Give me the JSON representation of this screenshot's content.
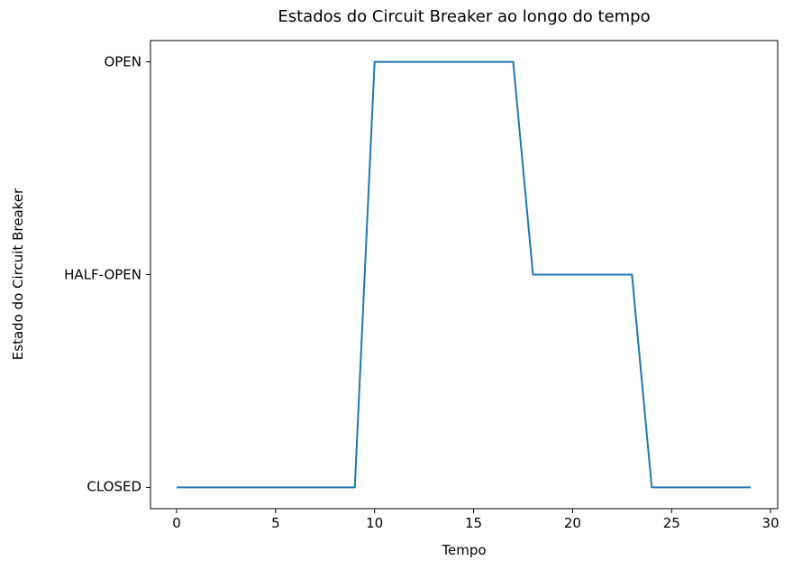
{
  "figure": {
    "background": "#ffffff",
    "axis_color": "#000000",
    "text_color": "#000000"
  },
  "chart_data": {
    "type": "line",
    "title": "Estados do Circuit Breaker ao longo do tempo",
    "xlabel": "Tempo",
    "ylabel": "Estado do Circuit Breaker",
    "line_color": "#1f77b4",
    "line_width": 2,
    "grid": false,
    "legend": null,
    "x": [
      0,
      1,
      2,
      3,
      4,
      5,
      6,
      7,
      8,
      9,
      10,
      11,
      12,
      13,
      14,
      15,
      16,
      17,
      18,
      19,
      20,
      21,
      22,
      23,
      24,
      25,
      26,
      27,
      28,
      29
    ],
    "y": [
      0,
      0,
      0,
      0,
      0,
      0,
      0,
      0,
      0,
      0,
      2,
      2,
      2,
      2,
      2,
      2,
      2,
      2,
      1,
      1,
      1,
      1,
      1,
      1,
      0,
      0,
      0,
      0,
      0,
      0
    ],
    "states": [
      "CLOSED",
      "CLOSED",
      "CLOSED",
      "CLOSED",
      "CLOSED",
      "CLOSED",
      "CLOSED",
      "CLOSED",
      "CLOSED",
      "CLOSED",
      "OPEN",
      "OPEN",
      "OPEN",
      "OPEN",
      "OPEN",
      "OPEN",
      "OPEN",
      "OPEN",
      "HALF-OPEN",
      "HALF-OPEN",
      "HALF-OPEN",
      "HALF-OPEN",
      "HALF-OPEN",
      "HALF-OPEN",
      "CLOSED",
      "CLOSED",
      "CLOSED",
      "CLOSED",
      "CLOSED",
      "CLOSED"
    ],
    "state_levels": {
      "CLOSED": 0,
      "HALF-OPEN": 1,
      "OPEN": 2
    },
    "yticks": [
      {
        "value": 0,
        "label": "CLOSED"
      },
      {
        "value": 1,
        "label": "HALF-OPEN"
      },
      {
        "value": 2,
        "label": "OPEN"
      }
    ],
    "xticks": [
      0,
      5,
      10,
      15,
      20,
      25,
      30
    ],
    "xlim": [
      -1.32,
      30.36
    ],
    "ylim": [
      -0.1,
      2.1
    ]
  }
}
